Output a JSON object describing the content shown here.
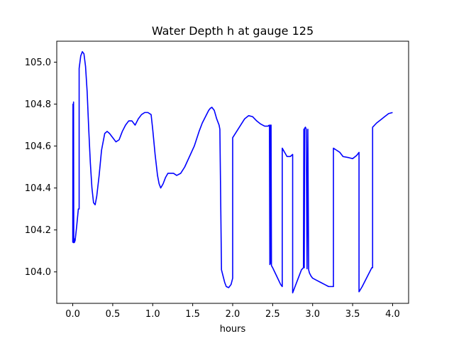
{
  "chart_data": {
    "type": "line",
    "title": "Water Depth h at gauge 125",
    "xlabel": "hours",
    "ylabel": "",
    "xlim": [
      -0.2,
      4.2
    ],
    "ylim": [
      103.85,
      105.1
    ],
    "xticks": [
      0.0,
      0.5,
      1.0,
      1.5,
      2.0,
      2.5,
      3.0,
      3.5,
      4.0
    ],
    "xtick_labels": [
      "0.0",
      "0.5",
      "1.0",
      "1.5",
      "2.0",
      "2.5",
      "3.0",
      "3.5",
      "4.0"
    ],
    "yticks": [
      104.0,
      104.2,
      104.4,
      104.6,
      104.8,
      105.0
    ],
    "ytick_labels": [
      "104.0",
      "104.2",
      "104.4",
      "104.6",
      "104.8",
      "105.0"
    ],
    "grid": false,
    "legend": "none",
    "color": "#0000ff",
    "series": [
      {
        "x": [
          0.0,
          0.003,
          0.006,
          0.01,
          0.013,
          0.016,
          0.02,
          0.03,
          0.05,
          0.07,
          0.08,
          0.08,
          0.1,
          0.12,
          0.14,
          0.16,
          0.18,
          0.2,
          0.22,
          0.24,
          0.26,
          0.28,
          0.3,
          0.33,
          0.36,
          0.4,
          0.43,
          0.46,
          0.5,
          0.54,
          0.58,
          0.62,
          0.66,
          0.7,
          0.74,
          0.78,
          0.82,
          0.86,
          0.9,
          0.94,
          0.98,
          1.0,
          1.03,
          1.06,
          1.08,
          1.1,
          1.13,
          1.16,
          1.19,
          1.22,
          1.26,
          1.3,
          1.35,
          1.4,
          1.46,
          1.52,
          1.58,
          1.62,
          1.66,
          1.7,
          1.72,
          1.74,
          1.77,
          1.8,
          1.83,
          1.84,
          1.86,
          1.88,
          1.9,
          1.92,
          1.95,
          1.98,
          2.0,
          2.0,
          2.05,
          2.1,
          2.15,
          2.2,
          2.25,
          2.3,
          2.35,
          2.4,
          2.44,
          2.46,
          2.465,
          2.47,
          2.475,
          2.48,
          2.485,
          2.5,
          2.55,
          2.6,
          2.62,
          2.62,
          2.65,
          2.68,
          2.72,
          2.75,
          2.75,
          2.78,
          2.82,
          2.86,
          2.885,
          2.89,
          2.895,
          2.9,
          2.91,
          2.92,
          2.93,
          2.94,
          2.95,
          2.96,
          2.98,
          3.0,
          3.05,
          3.1,
          3.15,
          3.2,
          3.25,
          3.26,
          3.26,
          3.3,
          3.34,
          3.38,
          3.45,
          3.5,
          3.55,
          3.58,
          3.58,
          3.62,
          3.66,
          3.7,
          3.74,
          3.75,
          3.75,
          3.8,
          3.85,
          3.9,
          3.95,
          4.0
        ],
        "y": [
          104.14,
          104.8,
          104.14,
          104.81,
          104.14,
          104.16,
          104.14,
          104.15,
          104.22,
          104.3,
          104.3,
          104.97,
          105.03,
          105.05,
          105.04,
          104.98,
          104.86,
          104.68,
          104.52,
          104.4,
          104.33,
          104.32,
          104.36,
          104.46,
          104.58,
          104.66,
          104.67,
          104.66,
          104.64,
          104.62,
          104.63,
          104.67,
          104.7,
          104.72,
          104.72,
          104.7,
          104.73,
          104.75,
          104.76,
          104.76,
          104.75,
          104.68,
          104.56,
          104.46,
          104.42,
          104.4,
          104.42,
          104.45,
          104.47,
          104.47,
          104.47,
          104.46,
          104.47,
          104.5,
          104.55,
          104.6,
          104.67,
          104.71,
          104.74,
          104.77,
          104.78,
          104.785,
          104.77,
          104.73,
          104.7,
          104.68,
          104.01,
          103.98,
          103.95,
          103.93,
          103.925,
          103.94,
          103.97,
          104.64,
          104.67,
          104.7,
          104.73,
          104.745,
          104.74,
          104.72,
          104.705,
          104.695,
          104.695,
          104.7,
          104.035,
          104.04,
          104.7,
          104.7,
          104.03,
          104.02,
          103.98,
          103.94,
          103.93,
          104.59,
          104.57,
          104.55,
          104.55,
          104.56,
          103.9,
          103.93,
          103.97,
          104.01,
          104.02,
          104.68,
          104.02,
          104.685,
          104.69,
          104.68,
          104.015,
          104.68,
          104.01,
          103.995,
          103.98,
          103.97,
          103.96,
          103.95,
          103.94,
          103.93,
          103.93,
          103.93,
          104.59,
          104.58,
          104.57,
          104.55,
          104.545,
          104.54,
          104.555,
          104.57,
          103.905,
          103.93,
          103.96,
          103.99,
          104.02,
          104.02,
          104.69,
          104.71,
          104.725,
          104.74,
          104.755,
          104.76
        ]
      }
    ]
  }
}
